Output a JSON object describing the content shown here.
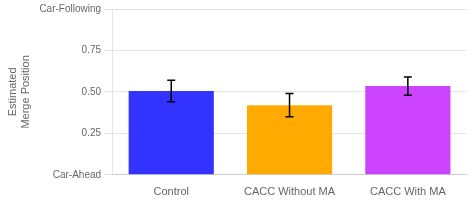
{
  "chart_data": {
    "type": "bar",
    "categories": [
      "Control",
      "CACC Without MA",
      "CACC With MA"
    ],
    "values": [
      0.505,
      0.42,
      0.535
    ],
    "errors": [
      0.065,
      0.07,
      0.055
    ],
    "colors": [
      "#3333ff",
      "#ffaa00",
      "#cc44ff"
    ],
    "ylabel": "Estimated\nMerge Position",
    "ylim": [
      0.0,
      1.0
    ],
    "yticks": [
      {
        "value": 0.0,
        "label": "Car-Ahead"
      },
      0.25,
      {
        "value": 0.5,
        "label": "0.50"
      },
      0.75,
      {
        "value": 1.0,
        "label": "Car-Following"
      }
    ],
    "grid": true
  }
}
